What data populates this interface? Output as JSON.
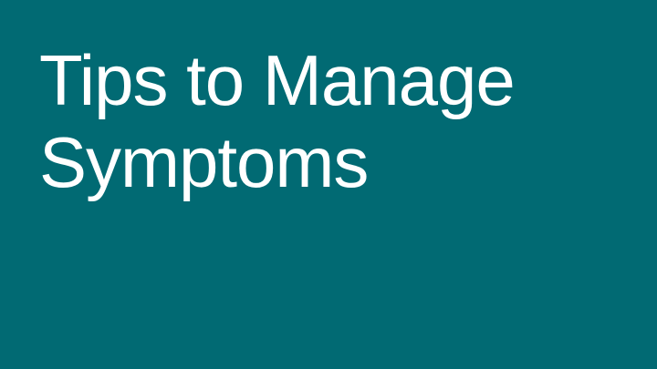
{
  "slide": {
    "background_color": "#016a73",
    "text_color": "#ffffff",
    "title_lines": [
      "Tips to Manage",
      "Symptoms"
    ]
  }
}
